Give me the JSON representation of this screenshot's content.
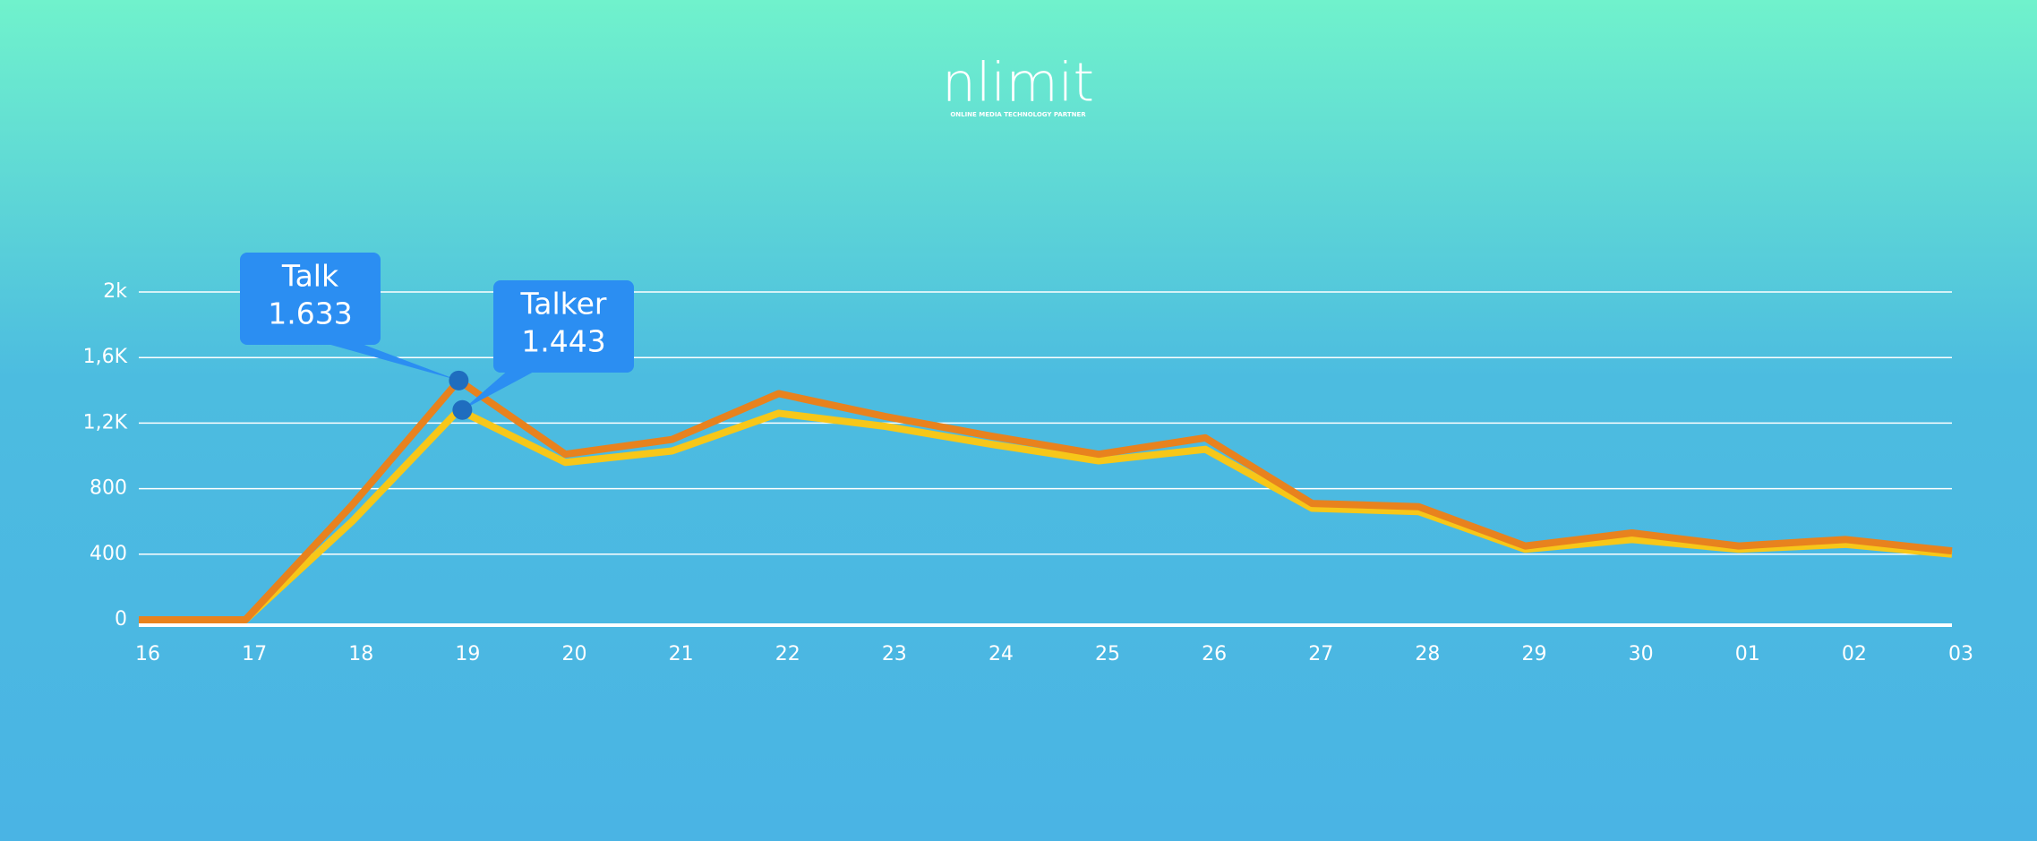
{
  "chart_data": {
    "type": "line",
    "logo": "nlimit",
    "logo_tagline": "ONLINE MEDIA TECHNOLOGY PARTNER",
    "categories": [
      "16",
      "17",
      "18",
      "19",
      "20",
      "21",
      "22",
      "23",
      "24",
      "25",
      "26",
      "27",
      "28",
      "29",
      "30",
      "01",
      "02",
      "03"
    ],
    "series": [
      {
        "name": "Talk",
        "color": "#e8821e",
        "values": [
          0,
          0,
          700,
          1460,
          1010,
          1100,
          1380,
          1240,
          1120,
          1010,
          1110,
          710,
          690,
          450,
          530,
          450,
          490,
          420
        ]
      },
      {
        "name": "Talker",
        "color": "#f7c719",
        "values": [
          0,
          0,
          600,
          1280,
          960,
          1030,
          1260,
          1180,
          1070,
          970,
          1040,
          680,
          660,
          430,
          490,
          430,
          460,
          400
        ]
      }
    ],
    "annotations": [
      {
        "text": "1.633"
      },
      {
        "text": "1.443"
      }
    ],
    "ylim": [
      0,
      2000
    ],
    "yticks": [
      0,
      400,
      800,
      {
        "value": 1200,
        "label": "1,2K"
      },
      {
        "value": 1600,
        "label": "1,6K"
      },
      {
        "value": 2000,
        "label": "2k"
      }
    ],
    "grid": true
  }
}
